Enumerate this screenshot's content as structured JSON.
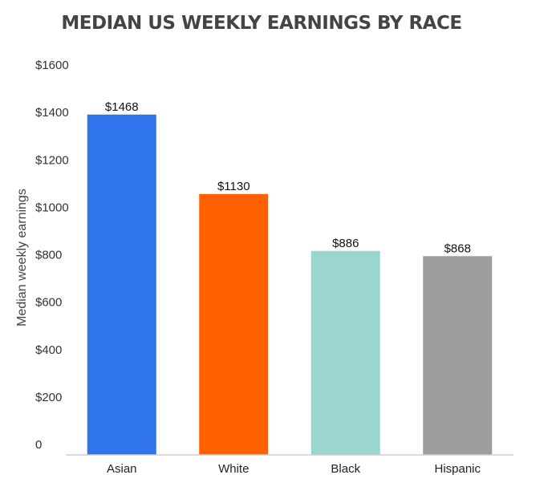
{
  "chart_data": {
    "type": "bar",
    "title": "MEDIAN US WEEKLY EARNINGS BY RACE",
    "xlabel": "",
    "ylabel": "Median weekly earnings",
    "categories": [
      "Asian",
      "White",
      "Black",
      "Hispanic"
    ],
    "values": [
      1468,
      1130,
      886,
      868
    ],
    "data_labels": [
      "$1468",
      "$1130",
      "$886",
      "$868"
    ],
    "bar_plot_values": [
      1435,
      1100,
      860,
      838
    ],
    "colors": [
      "#2f74ea",
      "#ff6100",
      "#9ad5d0",
      "#9e9e9e"
    ],
    "ylim": [
      0,
      1600
    ],
    "y_ticks": [
      0,
      200,
      400,
      600,
      800,
      1000,
      1200,
      1400,
      1600
    ],
    "y_tick_labels": [
      "0",
      "$200",
      "$400",
      "$600",
      "$800",
      "$1000",
      "$1200",
      "$1400",
      "$1600"
    ],
    "grid": false,
    "legend": "none"
  }
}
